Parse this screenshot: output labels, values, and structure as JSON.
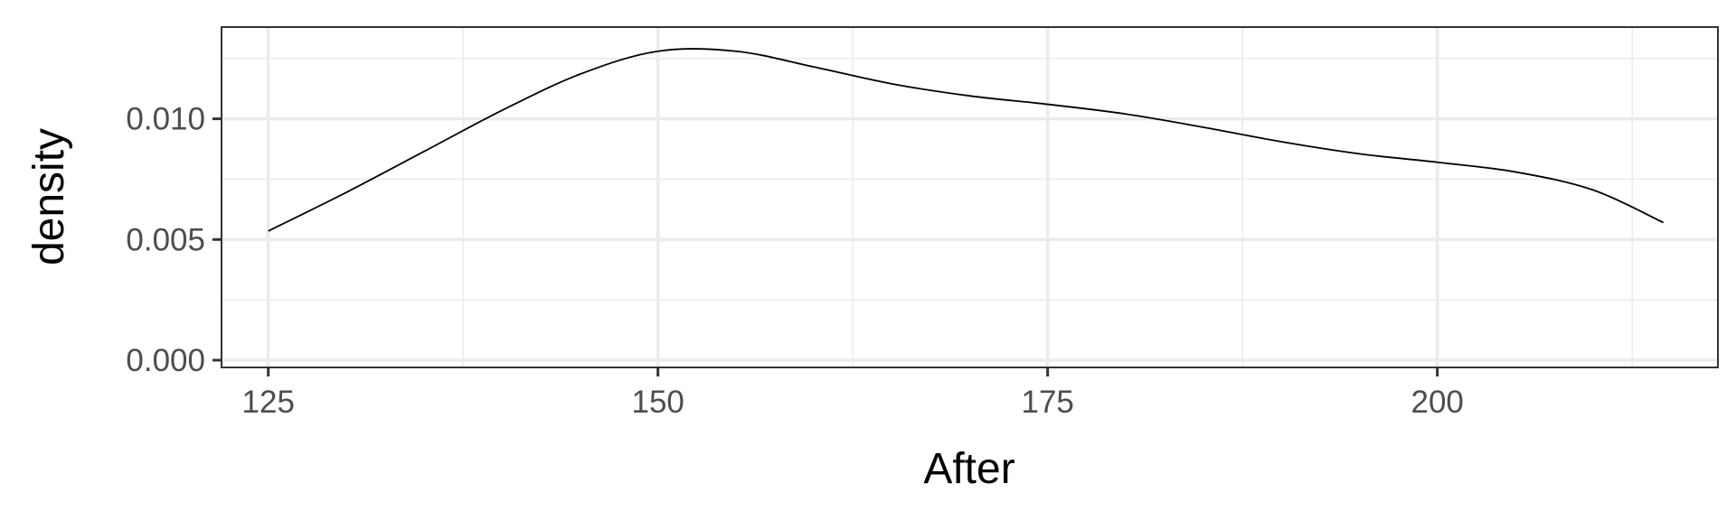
{
  "chart_data": {
    "type": "line",
    "title": "",
    "xlabel": "After",
    "ylabel": "density",
    "xlim": [
      122,
      218
    ],
    "ylim": [
      -0.0003,
      0.0138
    ],
    "x_ticks": [
      125,
      150,
      175,
      200
    ],
    "x_tick_labels": [
      "125",
      "150",
      "175",
      "200"
    ],
    "y_ticks": [
      0.0,
      0.005,
      0.01
    ],
    "y_tick_labels": [
      "0.000",
      "0.005",
      "0.010"
    ],
    "grid": true,
    "legend": "none",
    "colors": {
      "line": "#000000",
      "grid": "#ebebeb",
      "panel_border": "#333333",
      "tick_text": "#4d4d4d"
    },
    "series": [
      {
        "x": [
          125,
          130,
          135,
          140,
          145,
          150,
          155,
          160,
          165,
          170,
          175,
          180,
          185,
          190,
          195,
          200,
          205,
          210,
          214.5
        ],
        "y": [
          0.00535,
          0.00695,
          0.00865,
          0.01035,
          0.01185,
          0.0128,
          0.0128,
          0.01215,
          0.01145,
          0.01095,
          0.0106,
          0.0102,
          0.00965,
          0.00905,
          0.00855,
          0.0082,
          0.0078,
          0.00705,
          0.0057
        ]
      }
    ]
  }
}
